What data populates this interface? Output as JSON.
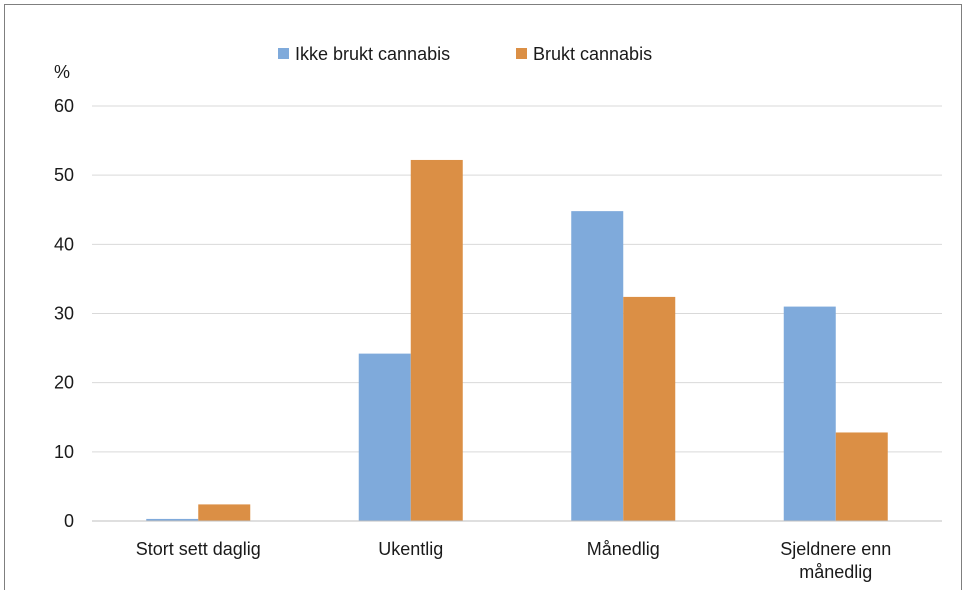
{
  "chart_data": {
    "type": "bar",
    "unit_label": "%",
    "categories": [
      [
        "Stort sett daglig"
      ],
      [
        "Ukentlig"
      ],
      [
        "Månedlig"
      ],
      [
        "Sjeldnere enn",
        "månedlig"
      ]
    ],
    "series": [
      {
        "name": "Ikke brukt cannabis",
        "color": "#7faadb",
        "values": [
          0.3,
          24.2,
          44.8,
          31.0
        ]
      },
      {
        "name": "Brukt cannabis",
        "color": "#db8f45",
        "values": [
          2.4,
          52.2,
          32.4,
          12.8
        ]
      }
    ],
    "ylim": [
      0,
      60
    ],
    "yticks": [
      0,
      10,
      20,
      30,
      40,
      50,
      60
    ],
    "grid": true,
    "legend_position": "top-center"
  }
}
